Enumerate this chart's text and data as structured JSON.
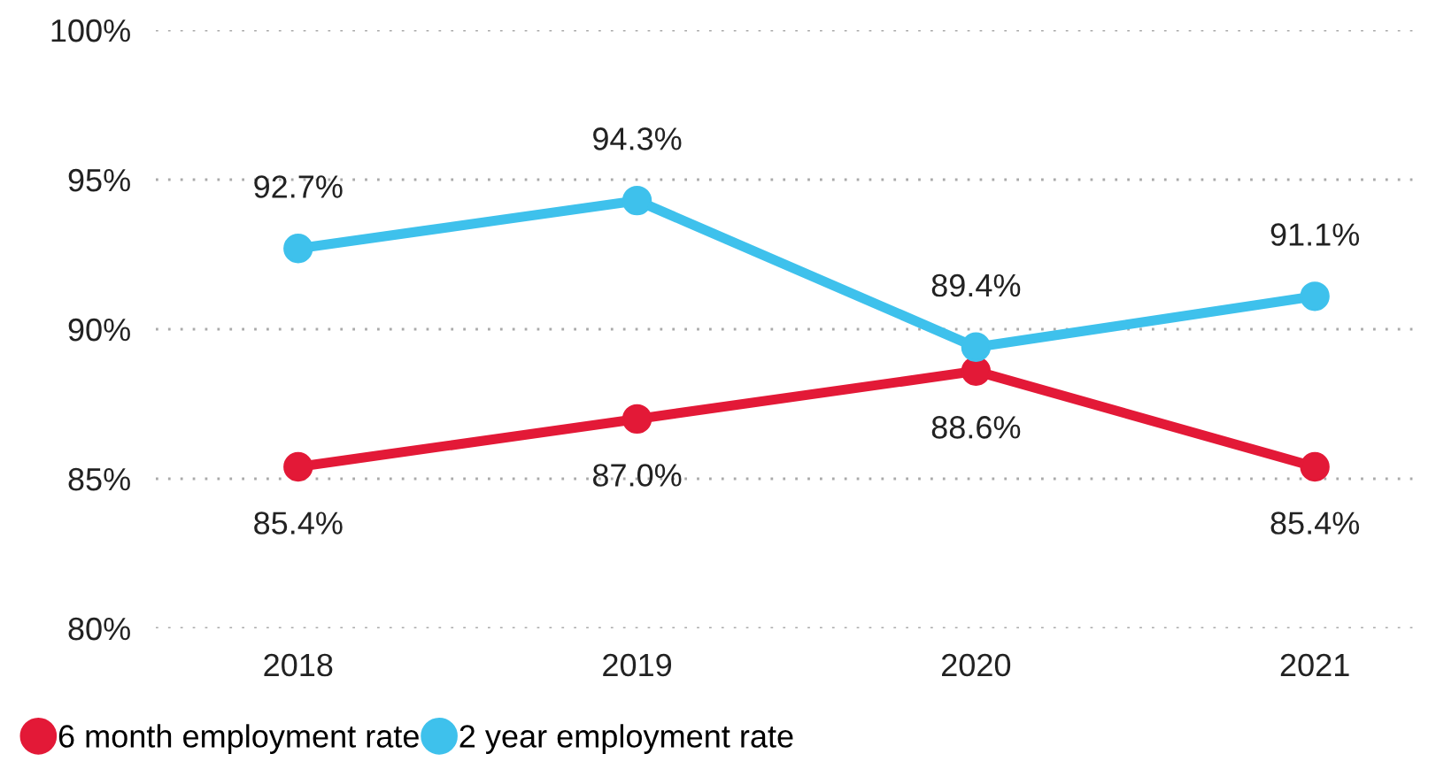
{
  "chart_data": {
    "type": "line",
    "categories": [
      "2018",
      "2019",
      "2020",
      "2021"
    ],
    "series": [
      {
        "name": "6 month employment rate",
        "color": "#e31937",
        "values": [
          85.4,
          87.0,
          88.6,
          85.4
        ],
        "value_labels": [
          "85.4%",
          "87.0%",
          "88.6%",
          "85.4%"
        ]
      },
      {
        "name": "2 year employment rate",
        "color": "#3ec1ec",
        "values": [
          92.7,
          94.3,
          89.4,
          91.1
        ],
        "value_labels": [
          "92.7%",
          "94.3%",
          "89.4%",
          "91.1%"
        ]
      }
    ],
    "ylim": [
      80,
      100
    ],
    "yticks": [
      {
        "value": 80,
        "label": "80%"
      },
      {
        "value": 85,
        "label": "85%"
      },
      {
        "value": 90,
        "label": "90%"
      },
      {
        "value": 95,
        "label": "95%"
      },
      {
        "value": 100,
        "label": "100%"
      }
    ],
    "grid": "y",
    "legend": "bottom left",
    "marker": "circle",
    "line_style": "solid"
  }
}
